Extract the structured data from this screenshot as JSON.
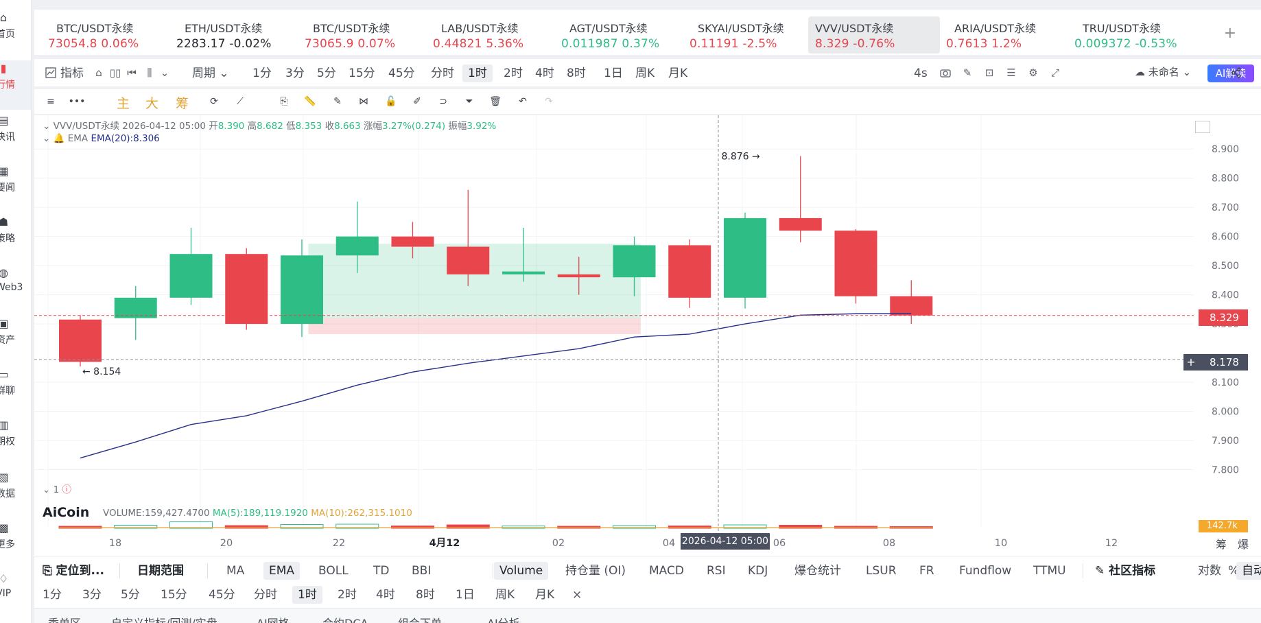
{
  "sidebar": {
    "items": [
      {
        "label": "首页",
        "icon": "home-icon"
      },
      {
        "label": "行情",
        "icon": "market-chart-icon",
        "active": true
      },
      {
        "label": "快讯",
        "icon": "flash-news-icon"
      },
      {
        "label": "要闻",
        "icon": "news-icon"
      },
      {
        "label": "策略",
        "icon": "strategy-robot-icon"
      },
      {
        "label": "Web3",
        "icon": "web3-icon"
      },
      {
        "label": "资产",
        "icon": "wallet-icon"
      },
      {
        "label": "群聊",
        "icon": "chat-icon"
      },
      {
        "label": "期权",
        "icon": "options-icon"
      },
      {
        "label": "数据",
        "icon": "data-icon"
      },
      {
        "label": "更多",
        "icon": "more-icon"
      },
      {
        "label": "VIP",
        "icon": "vip-icon"
      }
    ]
  },
  "tickers": [
    {
      "name": "BTC/USDT永续",
      "price": "73054.8",
      "change": "0.06%",
      "dir": "down"
    },
    {
      "name": "ETH/USDT永续",
      "price": "2283.17",
      "change": "-0.02%",
      "dir": "neutral"
    },
    {
      "name": "BTC/USDT永续",
      "price": "73065.9",
      "change": "0.07%",
      "dir": "down"
    },
    {
      "name": "LAB/USDT永续",
      "price": "0.44821",
      "change": "5.36%",
      "dir": "down"
    },
    {
      "name": "AGT/USDT永续",
      "price": "0.011987",
      "change": "0.37%",
      "dir": "up"
    },
    {
      "name": "SKYAI/USDT永续",
      "price": "0.11191",
      "change": "-2.5%",
      "dir": "down"
    },
    {
      "name": "VVV/USDT永续",
      "price": "8.329",
      "change": "-0.76%",
      "dir": "down",
      "active": true
    },
    {
      "name": "ARIA/USDT永续",
      "price": "0.7613",
      "change": "1.2%",
      "dir": "down"
    },
    {
      "name": "TRU/USDT永续",
      "price": "0.009372",
      "change": "-0.53%",
      "dir": "up"
    }
  ],
  "toolbar": {
    "indicator_label": "指标",
    "period_label": "周期",
    "intervals": [
      "1分",
      "3分",
      "5分",
      "15分",
      "45分",
      "分时",
      "1时",
      "2时",
      "4时",
      "8时",
      "1日",
      "周K",
      "月K"
    ],
    "active_interval": "1时",
    "refresh": "4s",
    "layout_name": "未命名",
    "ai_read": "AI解读"
  },
  "drawbar": {
    "main_labels": [
      "主",
      "大",
      "筹"
    ]
  },
  "chart_legend": {
    "symbol": "VVV/USDT永续",
    "datetime": "2026-04-12 05:00",
    "open_label": "开",
    "open": "8.390",
    "high_label": "高",
    "high": "8.682",
    "low_label": "低",
    "low": "8.353",
    "close_label": "收",
    "close": "8.663",
    "change_label": "涨幅",
    "change": "3.27%(0.274)",
    "amplitude_label": "振幅",
    "amplitude": "3.92%",
    "ema_name": "EMA",
    "ema_value": "EMA(20):8.306",
    "vol_pane_index": "1",
    "vol_text": "VOLUME:159,427.4700",
    "vol_ma5": "MA(5):189,119.1920",
    "vol_ma10": "MA(10):262,315.1010",
    "logo": "AiCoin"
  },
  "chart_data": {
    "type": "candlestick",
    "y_ticks": [
      "8.900",
      "8.800",
      "8.700",
      "8.600",
      "8.500",
      "8.400",
      "8.300",
      "8.100",
      "8.000",
      "7.900",
      "7.800"
    ],
    "ylim": [
      7.74,
      8.95
    ],
    "x_ticks": [
      "18",
      "20",
      "22",
      "4月12",
      "02",
      "04",
      "06",
      "08",
      "10",
      "12"
    ],
    "hover_x_label": "2026-04-12 05:00",
    "last_price": "8.329",
    "crosshair_price": "8.178",
    "high_marker": "8.876",
    "low_marker": "8.154",
    "volume_axis_label": "142.7k",
    "axis_unit_labels": [
      "筹",
      "爆"
    ],
    "candles": [
      {
        "o": 8.315,
        "h": 8.33,
        "l": 8.154,
        "c": 8.17
      },
      {
        "o": 8.32,
        "h": 8.43,
        "l": 8.245,
        "c": 8.39
      },
      {
        "o": 8.39,
        "h": 8.63,
        "l": 8.365,
        "c": 8.54
      },
      {
        "o": 8.54,
        "h": 8.56,
        "l": 8.28,
        "c": 8.3
      },
      {
        "o": 8.3,
        "h": 8.59,
        "l": 8.255,
        "c": 8.535
      },
      {
        "o": 8.535,
        "h": 8.72,
        "l": 8.475,
        "c": 8.6
      },
      {
        "o": 8.6,
        "h": 8.65,
        "l": 8.525,
        "c": 8.565
      },
      {
        "o": 8.565,
        "h": 8.76,
        "l": 8.43,
        "c": 8.47
      },
      {
        "o": 8.47,
        "h": 8.63,
        "l": 8.445,
        "c": 8.48
      },
      {
        "o": 8.47,
        "h": 8.53,
        "l": 8.4,
        "c": 8.46
      },
      {
        "o": 8.46,
        "h": 8.6,
        "l": 8.395,
        "c": 8.57
      },
      {
        "o": 8.57,
        "h": 8.59,
        "l": 8.355,
        "c": 8.39
      },
      {
        "o": 8.39,
        "h": 8.682,
        "l": 8.353,
        "c": 8.663
      },
      {
        "o": 8.663,
        "h": 8.876,
        "l": 8.58,
        "c": 8.62
      },
      {
        "o": 8.62,
        "h": 8.625,
        "l": 8.37,
        "c": 8.395
      },
      {
        "o": 8.395,
        "h": 8.45,
        "l": 8.3,
        "c": 8.329
      }
    ],
    "ema": [
      7.84,
      7.895,
      7.955,
      7.985,
      8.035,
      8.09,
      8.135,
      8.165,
      8.19,
      8.215,
      8.255,
      8.265,
      8.3,
      8.33,
      8.335,
      8.335
    ],
    "volumes": [
      0.3,
      0.45,
      0.95,
      0.4,
      0.55,
      0.6,
      0.35,
      0.5,
      0.35,
      0.3,
      0.4,
      0.35,
      0.5,
      0.45,
      0.3,
      0.25
    ],
    "position_box": {
      "start_index": 4.5,
      "end_index": 10.5,
      "entry": 8.32,
      "target": 8.575,
      "stop": 8.265
    }
  },
  "bottom_bar1": {
    "locate": "定位到...",
    "date_range": "日期范围",
    "main_indicators": [
      "MA",
      "EMA",
      "BOLL",
      "TD",
      "BBI"
    ],
    "active_main": "EMA",
    "sub_indicators": [
      "Volume",
      "持仓量 (OI)",
      "MACD",
      "RSI",
      "KDJ",
      "爆仓统计",
      "LSUR",
      "FR",
      "Fundflow",
      "TTMU"
    ],
    "active_sub": "Volume",
    "community": "社区指标",
    "log_scale": "对数",
    "percent": "%",
    "auto": "自动"
  },
  "bottom_bar2": {
    "intervals": [
      "1分",
      "3分",
      "5分",
      "15分",
      "45分",
      "分时",
      "1时",
      "2时",
      "4时",
      "8时",
      "1日",
      "周K",
      "月K"
    ],
    "active": "1时",
    "close": "×"
  },
  "bottom_bar3": {
    "tabs": [
      "委单区",
      "自定义指标/回测/实盘",
      "AI网格",
      "合约DCA",
      "组合下单",
      "AI分析"
    ]
  }
}
